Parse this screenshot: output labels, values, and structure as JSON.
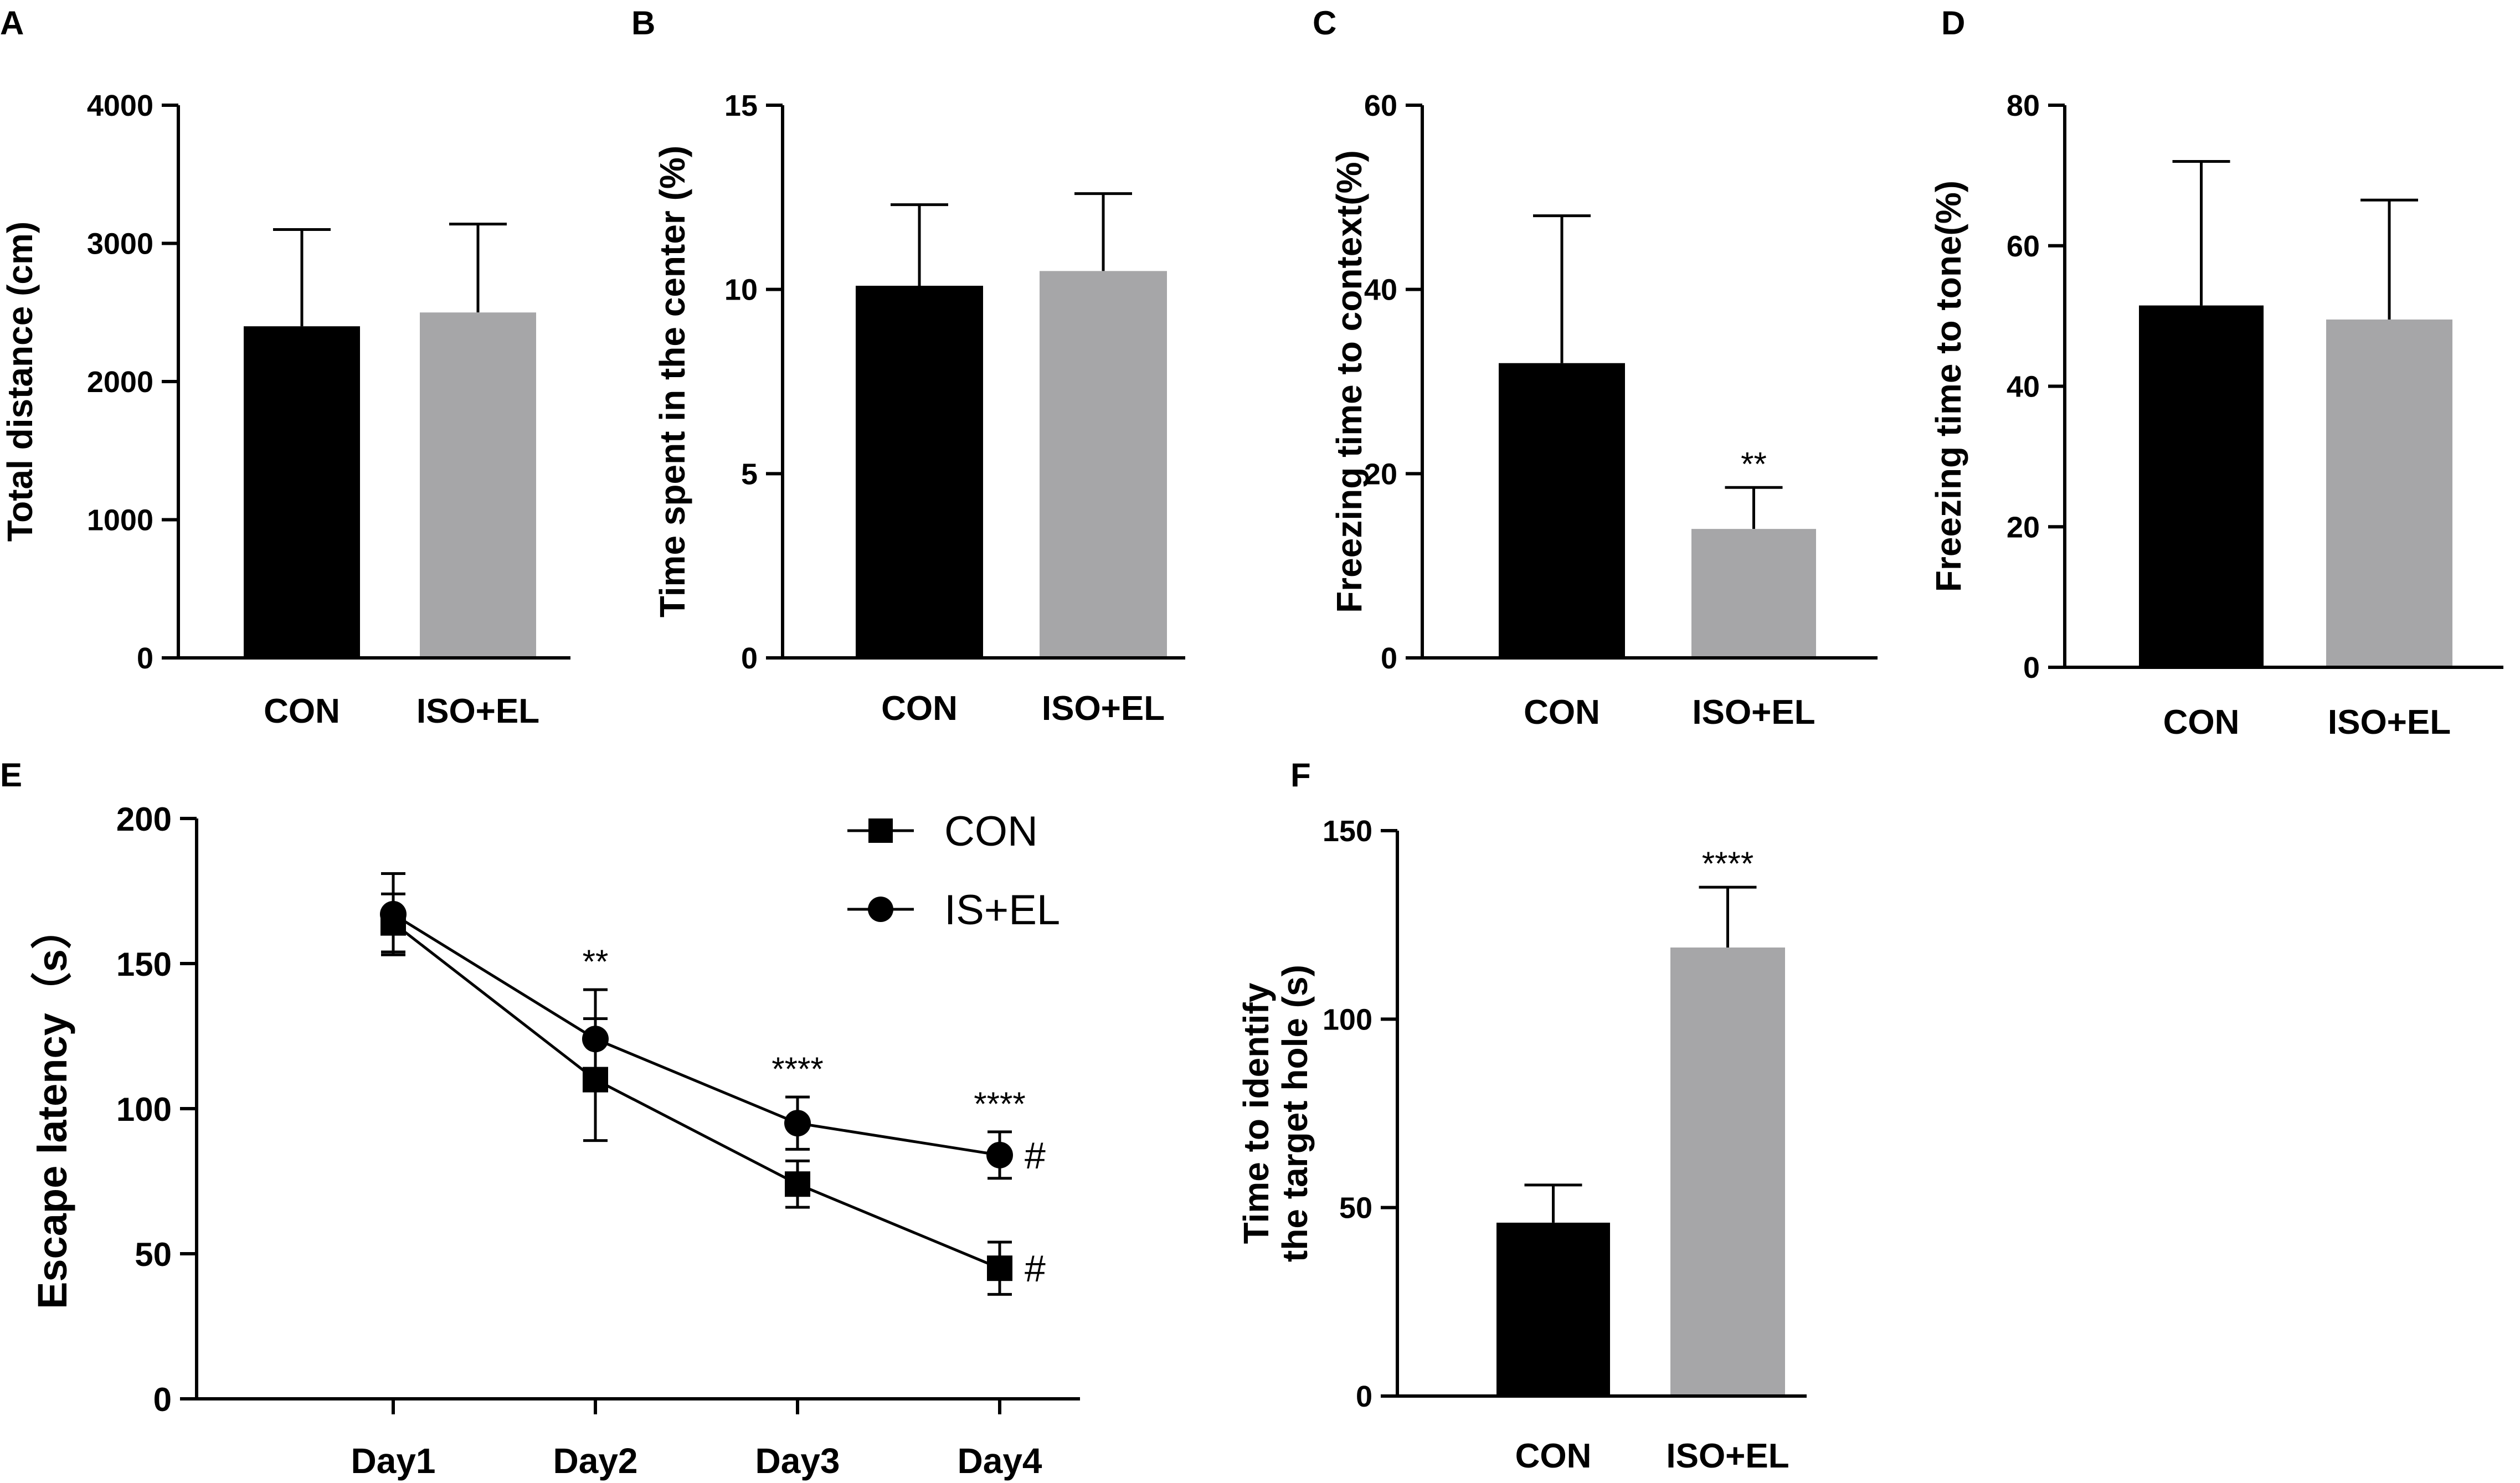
{
  "colors": {
    "con": "#000000",
    "iso_el": "#a6a6a8",
    "axis": "#000000"
  },
  "chart_data": [
    {
      "panel": "A",
      "type": "bar",
      "categories": [
        "CON",
        "ISO+EL"
      ],
      "values": [
        2400,
        2500
      ],
      "errors": [
        700,
        640
      ],
      "ylabel": "Total distance (cm)",
      "ylim": [
        0,
        4000
      ],
      "yticks": [
        0,
        1000,
        2000,
        3000,
        4000
      ],
      "annotations": [
        "",
        ""
      ]
    },
    {
      "panel": "B",
      "type": "bar",
      "categories": [
        "CON",
        "ISO+EL"
      ],
      "values": [
        10.1,
        10.5
      ],
      "errors": [
        2.2,
        2.1
      ],
      "ylabel": "Time spent in the center (%)",
      "ylim": [
        0,
        15
      ],
      "yticks": [
        0,
        5,
        10,
        15
      ],
      "annotations": [
        "",
        ""
      ]
    },
    {
      "panel": "C",
      "type": "bar",
      "categories": [
        "CON",
        "ISO+EL"
      ],
      "values": [
        32,
        14
      ],
      "errors": [
        16,
        4.5
      ],
      "ylabel": "Freezing time to context(%)",
      "ylim": [
        0,
        60
      ],
      "yticks": [
        0,
        20,
        40,
        60
      ],
      "annotations": [
        "",
        "**"
      ]
    },
    {
      "panel": "D",
      "type": "bar",
      "categories": [
        "CON",
        "ISO+EL"
      ],
      "values": [
        51.5,
        49.5
      ],
      "errors": [
        20.5,
        17
      ],
      "ylabel": "Freezing time to tone(%)",
      "ylim": [
        0,
        80
      ],
      "yticks": [
        0,
        20,
        40,
        60,
        80
      ],
      "annotations": [
        "",
        ""
      ]
    },
    {
      "panel": "E",
      "type": "line",
      "categories": [
        "Day1",
        "Day2",
        "Day3",
        "Day4"
      ],
      "series": [
        {
          "name": "CON",
          "marker": "square",
          "values": [
            164,
            110,
            74,
            45
          ],
          "errors": [
            10,
            21,
            8,
            9
          ],
          "end_marks": [
            "",
            "",
            "",
            "#"
          ]
        },
        {
          "name": "IS+EL",
          "marker": "circle",
          "values": [
            167,
            124,
            95,
            84
          ],
          "errors": [
            14,
            17,
            9,
            8
          ],
          "end_marks": [
            "",
            "",
            "",
            "#"
          ]
        }
      ],
      "annotations": [
        "",
        "**",
        "****",
        "****"
      ],
      "ylabel": "Escape latency（s）",
      "ylim": [
        0,
        200
      ],
      "yticks": [
        0,
        50,
        100,
        150,
        200
      ]
    },
    {
      "panel": "F",
      "type": "bar",
      "categories": [
        "CON",
        "ISO+EL"
      ],
      "values": [
        46,
        119
      ],
      "errors": [
        10,
        16
      ],
      "ylabel_lines": [
        "Time to identify",
        "the target hole (s)"
      ],
      "ylim": [
        0,
        150
      ],
      "yticks": [
        0,
        50,
        100,
        150
      ],
      "annotations": [
        "",
        "****"
      ]
    }
  ]
}
